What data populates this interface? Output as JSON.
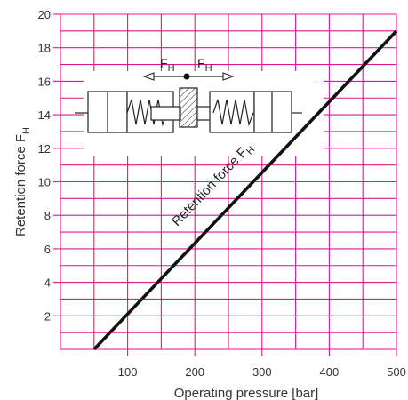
{
  "chart_data": {
    "type": "line",
    "xlabel": "Operating pressure [bar]",
    "ylabel": "Retention force F",
    "ylabel_subscript": "H",
    "xlim": [
      0,
      500
    ],
    "ylim": [
      0,
      20
    ],
    "x_ticks": [
      100,
      200,
      300,
      400,
      500
    ],
    "y_ticks": [
      2,
      4,
      6,
      8,
      10,
      12,
      14,
      16,
      18,
      20
    ],
    "grid_x_step": 50,
    "grid_y_step": 1,
    "grid": true,
    "series": [
      {
        "label": "Retention force F",
        "label_subscript": "H",
        "x": [
          50,
          500
        ],
        "y": [
          0,
          19
        ],
        "color": "#111111"
      }
    ],
    "inset": {
      "force_label_left": "F",
      "force_label_right": "F",
      "force_subscript": "H"
    },
    "grid_color": "#e4168c"
  }
}
